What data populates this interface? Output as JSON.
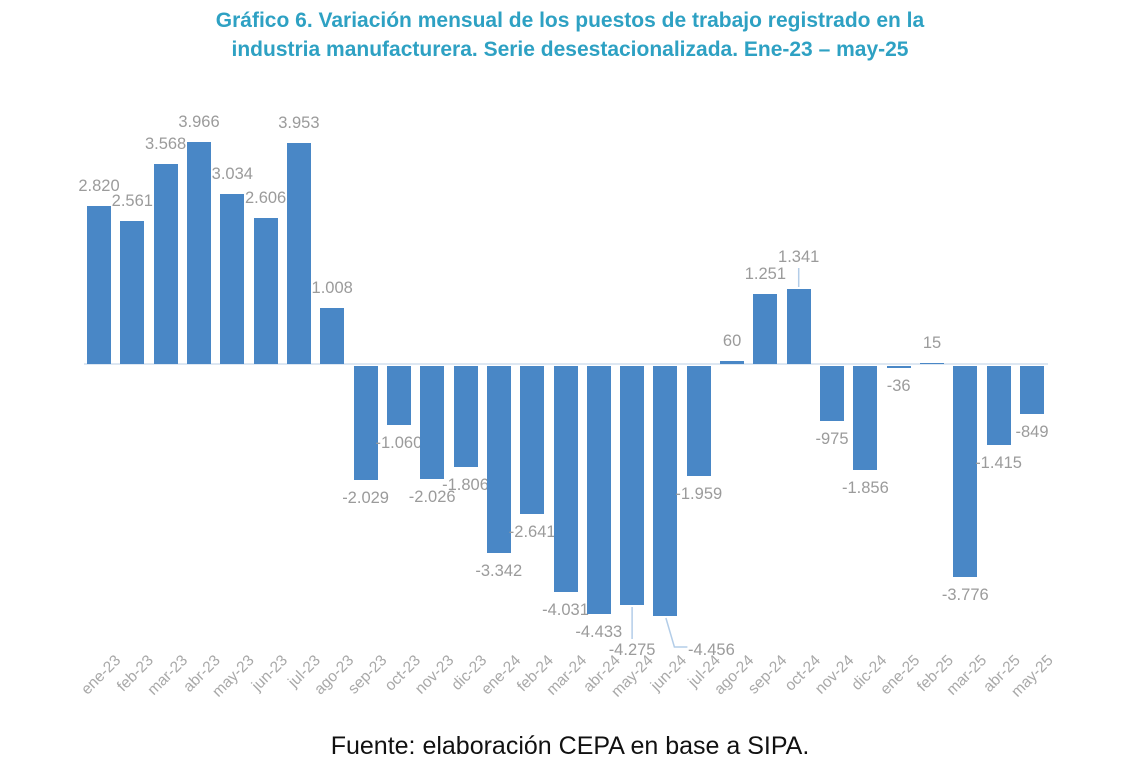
{
  "page": {
    "title_line1": "Gráfico 6. Variación mensual de los puestos de trabajo registrado en la",
    "title_line2": "industria manufacturera. Serie desestacionalizada. Ene-23 – may-25",
    "source": "Fuente: elaboración CEPA en base a SIPA."
  },
  "colors": {
    "bar": "#4987C6",
    "title": "#2EA1C3",
    "data_label": "#9B9B9B",
    "axis_label": "#A8A8A8",
    "baseline": "#DDE7F2",
    "leader": "#B3CDE8",
    "source_text": "#111111"
  },
  "chart_data": {
    "type": "bar",
    "title": "Gráfico 6. Variación mensual de los puestos de trabajo registrado en la industria manufacturera. Serie desestacionalizada. Ene-23 – may-25",
    "xlabel": "",
    "ylabel": "",
    "legend": "none",
    "grid": false,
    "baseline": 0,
    "ylim": [
      -4456,
      3966
    ],
    "categories": [
      "ene-23",
      "feb-23",
      "mar-23",
      "abr-23",
      "may-23",
      "jun-23",
      "jul-23",
      "ago-23",
      "sep-23",
      "oct-23",
      "nov-23",
      "dic-23",
      "ene-24",
      "feb-24",
      "mar-24",
      "abr-24",
      "may-24",
      "jun-24",
      "jul-24",
      "ago-24",
      "sep-24",
      "oct-24",
      "nov-24",
      "dic-24",
      "ene-25",
      "feb-25",
      "mar-25",
      "abr-25",
      "may-25"
    ],
    "values": [
      2820,
      2561,
      3568,
      3966,
      3034,
      2606,
      3953,
      1008,
      -2029,
      -1060,
      -2026,
      -1806,
      -3342,
      -2641,
      -4031,
      -4433,
      -4275,
      -4456,
      -1959,
      60,
      1251,
      1341,
      -975,
      -1856,
      -36,
      15,
      -3776,
      -1415,
      -849
    ],
    "labels": [
      "2.820",
      "2.561",
      "3.568",
      "3.966",
      "3.034",
      "2.606",
      "3.953",
      "1.008",
      "-2.029",
      "-1.060",
      "-2.026",
      "-1.806",
      "-3.342",
      "-2.641",
      "-4.031",
      "-4.433",
      "-4.275",
      "-4.456",
      "-1.959",
      "60",
      "1.251",
      "1.341",
      "-975",
      "-1.856",
      "-36",
      "15",
      "-3.776",
      "-1.415",
      "-849"
    ]
  }
}
